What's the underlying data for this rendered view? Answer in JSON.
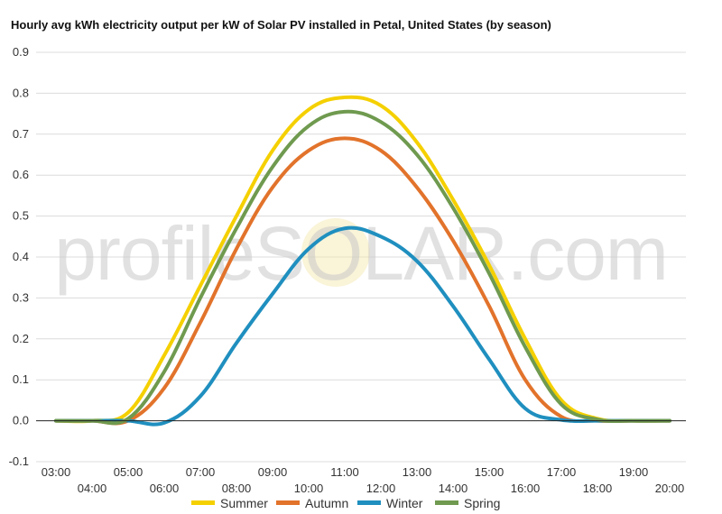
{
  "chart_data": {
    "type": "line",
    "title": "Hourly avg kWh electricity output per kW of Solar PV installed in Petal, United States (by season)",
    "watermark": "profileSOLAR.com",
    "x": [
      "03:00",
      "04:00",
      "05:00",
      "06:00",
      "07:00",
      "08:00",
      "09:00",
      "10:00",
      "11:00",
      "12:00",
      "13:00",
      "14:00",
      "15:00",
      "16:00",
      "17:00",
      "18:00",
      "19:00",
      "20:00"
    ],
    "xlabels_top": [
      "03:00",
      "05:00",
      "07:00",
      "09:00",
      "11:00",
      "13:00",
      "15:00",
      "17:00",
      "19:00"
    ],
    "xlabels_bottom": [
      "04:00",
      "06:00",
      "08:00",
      "10:00",
      "12:00",
      "14:00",
      "16:00",
      "18:00",
      "20:00"
    ],
    "ylim": [
      -0.1,
      0.9
    ],
    "yticks": [
      "-0.1",
      "0.0",
      "0.1",
      "0.2",
      "0.3",
      "0.4",
      "0.5",
      "0.6",
      "0.7",
      "0.8",
      "0.9"
    ],
    "grid": true,
    "legend_position": "bottom",
    "series": [
      {
        "name": "Summer",
        "color": "#f5d000",
        "values": [
          0.0,
          0.0,
          0.02,
          0.16,
          0.33,
          0.5,
          0.66,
          0.76,
          0.79,
          0.77,
          0.68,
          0.54,
          0.38,
          0.2,
          0.05,
          0.005,
          0.0,
          0.0
        ]
      },
      {
        "name": "Autumn",
        "color": "#e2732b",
        "values": [
          0.0,
          0.0,
          0.0,
          0.08,
          0.24,
          0.42,
          0.57,
          0.66,
          0.69,
          0.66,
          0.57,
          0.44,
          0.28,
          0.1,
          0.01,
          0.0,
          0.0,
          0.0
        ]
      },
      {
        "name": "Winter",
        "color": "#1f8fbf",
        "values": [
          0.0,
          0.0,
          0.0,
          -0.005,
          0.06,
          0.19,
          0.31,
          0.42,
          0.47,
          0.45,
          0.39,
          0.28,
          0.15,
          0.03,
          0.002,
          0.0,
          0.0,
          0.0
        ]
      },
      {
        "name": "Spring",
        "color": "#6f9a4f",
        "values": [
          0.0,
          0.0,
          0.005,
          0.12,
          0.3,
          0.47,
          0.62,
          0.72,
          0.755,
          0.73,
          0.65,
          0.52,
          0.36,
          0.18,
          0.04,
          0.003,
          0.0,
          0.0
        ]
      }
    ]
  }
}
